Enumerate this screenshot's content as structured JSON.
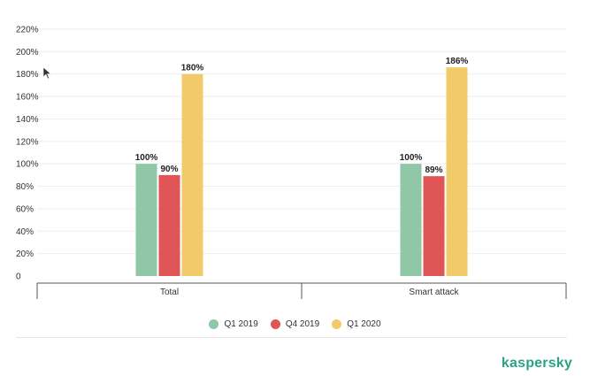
{
  "chart_data": {
    "type": "bar",
    "categories": [
      "Total",
      "Smart attack"
    ],
    "series": [
      {
        "name": "Q1 2019",
        "values": [
          100,
          100
        ],
        "labels": [
          "100%",
          "100%"
        ]
      },
      {
        "name": "Q4 2019",
        "values": [
          90,
          89
        ],
        "labels": [
          "90%",
          "89%"
        ]
      },
      {
        "name": "Q1 2020",
        "values": [
          180,
          186
        ],
        "labels": [
          "180%",
          "186%"
        ]
      }
    ],
    "ylim": [
      0,
      220
    ],
    "yticks": [
      0,
      20,
      40,
      60,
      80,
      100,
      120,
      140,
      160,
      180,
      200,
      220
    ],
    "ytick_labels": [
      "0",
      "20%",
      "40%",
      "60%",
      "80%",
      "100%",
      "120%",
      "140%",
      "160%",
      "180%",
      "200%",
      "220%"
    ],
    "colors": [
      "#8fc7a7",
      "#e05656",
      "#f1cb69"
    ],
    "grid": true,
    "legend_placement": "bottom-center"
  },
  "brand": {
    "name": "kaspersky",
    "color": "#2aa384"
  }
}
